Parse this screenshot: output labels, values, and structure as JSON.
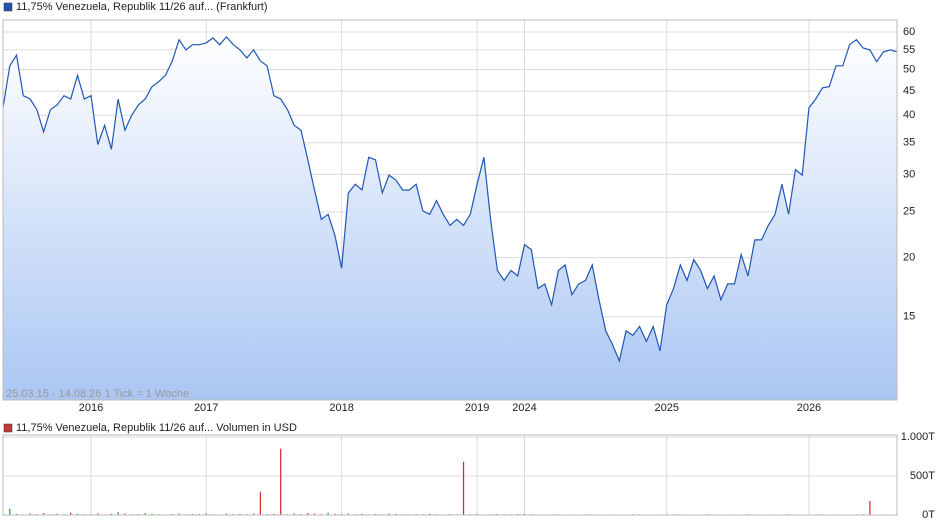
{
  "chart_data": [
    {
      "type": "area",
      "log": true,
      "grid": true,
      "series": [
        {
          "name": "11,75% Venezuela, Republik 11/26 auf... (Frankfurt)",
          "color": "#2156b3",
          "values": [
            41.5,
            50.9,
            53.6,
            44.0,
            43.3,
            41.1,
            36.9,
            41.1,
            42.1,
            44.0,
            43.3,
            48.6,
            43.3,
            44.0,
            34.7,
            38.1,
            33.9,
            43.3,
            37.2,
            40.0,
            42.1,
            43.3,
            46.0,
            47.1,
            48.6,
            52.1,
            57.8,
            55.0,
            56.4,
            56.4,
            56.9,
            58.3,
            56.4,
            58.6,
            56.4,
            55.0,
            52.9,
            55.0,
            52.1,
            50.9,
            44.0,
            43.3,
            41.1,
            38.1,
            37.2,
            32.2,
            27.8,
            24.1,
            24.7,
            22.3,
            19.0,
            27.4,
            28.6,
            27.8,
            32.6,
            32.2,
            27.4,
            29.9,
            29.2,
            27.8,
            27.8,
            28.6,
            25.1,
            24.7,
            26.4,
            24.7,
            23.4,
            24.1,
            23.4,
            24.7,
            28.6,
            32.6,
            24.1,
            18.8,
            17.9,
            18.8,
            18.3,
            21.3,
            20.8,
            17.2,
            17.6,
            15.9,
            18.8,
            19.3,
            16.7,
            17.6,
            17.9,
            19.3,
            16.3,
            14.0,
            13.1,
            12.1,
            14.0,
            13.7,
            14.3,
            13.3,
            14.3,
            12.7,
            15.9,
            17.2,
            19.3,
            17.9,
            19.8,
            18.8,
            17.2,
            18.3,
            16.3,
            17.6,
            17.6,
            20.3,
            18.3,
            21.8,
            21.8,
            23.4,
            24.7,
            28.6,
            24.7,
            30.7,
            29.9,
            41.5,
            43.3,
            45.7,
            46.0,
            50.9,
            50.9,
            56.4,
            57.8,
            55.5,
            55.0,
            51.9,
            54.5,
            55.0,
            54.5
          ]
        }
      ],
      "ylim": [
        10,
        63
      ],
      "yticks": [
        15,
        20,
        25,
        30,
        35,
        40,
        45,
        50,
        55,
        60
      ],
      "xlim": [
        0,
        132
      ],
      "xticks": [
        {
          "value": 13,
          "label": "2016"
        },
        {
          "value": 30,
          "label": "2017"
        },
        {
          "value": 50,
          "label": "2018"
        },
        {
          "value": 70,
          "label": "2019"
        },
        {
          "value": 77,
          "label": "2024"
        },
        {
          "value": 98,
          "label": "2025"
        },
        {
          "value": 119,
          "label": "2026"
        }
      ],
      "annotation": "25.03.15 - 14.08.26   1 Tick = 1 Woche"
    },
    {
      "type": "bar",
      "grid": true,
      "series": [
        {
          "name": "11,75% Venezuela, Republik 11/26 auf... Volumen in USD",
          "color": "#c23b3b",
          "up_color": "#2ca02c",
          "down_color": "#d62728",
          "values": [
            10,
            80,
            15,
            8,
            20,
            12,
            25,
            10,
            18,
            12,
            30,
            15,
            10,
            12,
            22,
            8,
            15,
            35,
            20,
            10,
            12,
            25,
            18,
            10,
            8,
            14,
            20,
            10,
            12,
            15,
            22,
            10,
            8,
            18,
            12,
            15,
            10,
            20,
            300,
            12,
            15,
            850,
            10,
            20,
            12,
            25,
            18,
            10,
            30,
            15,
            12,
            20,
            10,
            15,
            8,
            12,
            10,
            18,
            15,
            10,
            8,
            12,
            10,
            15,
            10,
            8,
            12,
            10,
            680,
            10,
            15,
            8,
            10,
            12,
            10,
            8,
            12,
            15,
            10,
            8,
            6,
            8,
            10,
            5,
            8,
            6,
            10,
            8,
            5,
            6,
            8,
            5,
            6,
            10,
            8,
            6,
            5,
            8,
            6,
            10,
            5,
            8,
            6,
            5,
            10,
            8,
            6,
            5,
            8,
            6,
            10,
            8,
            6,
            5,
            8,
            6,
            10,
            8,
            5,
            6,
            8,
            10,
            6,
            8,
            5,
            6,
            8,
            10,
            180,
            6,
            8,
            5,
            6
          ]
        }
      ],
      "ylim": [
        0,
        1000
      ],
      "yticks": [
        {
          "value": 0,
          "label": "0T"
        },
        {
          "value": 500,
          "label": "500T"
        },
        {
          "value": 1000,
          "label": "1.000T"
        }
      ]
    }
  ]
}
